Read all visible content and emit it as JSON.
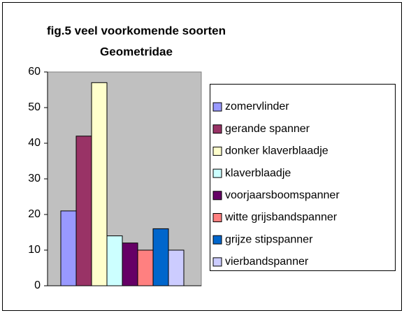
{
  "chart_data": {
    "type": "bar",
    "title": [
      "fig.5  veel voorkomende soorten",
      "Geometridae"
    ],
    "categories": [
      null
    ],
    "series": [
      {
        "name": "zomervlinder",
        "color": "#9999ff",
        "values": [
          21
        ]
      },
      {
        "name": "gerande spanner",
        "color": "#993366",
        "values": [
          42
        ]
      },
      {
        "name": "donker klaverblaadje",
        "color": "#ffffcc",
        "values": [
          57
        ]
      },
      {
        "name": "klaverblaadje",
        "color": "#ccffff",
        "values": [
          14
        ]
      },
      {
        "name": "voorjaarsboomspanner",
        "color": "#660066",
        "values": [
          12
        ]
      },
      {
        "name": "witte grijsbandspanner",
        "color": "#ff8080",
        "values": [
          10
        ]
      },
      {
        "name": "grijze stipspanner",
        "color": "#0066cc",
        "values": [
          16
        ]
      },
      {
        "name": "vierbandspanner",
        "color": "#ccccff",
        "values": [
          10
        ]
      }
    ],
    "ylim": [
      0,
      60
    ],
    "yticks": [
      0,
      10,
      20,
      30,
      40,
      50,
      60
    ],
    "grid": false,
    "legend": "right"
  }
}
